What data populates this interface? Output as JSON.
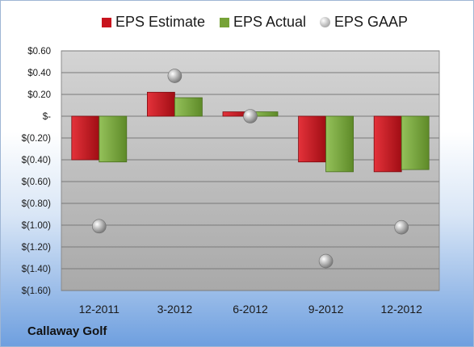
{
  "company_label": "Callaway Golf",
  "chart_data": {
    "type": "bar",
    "categories": [
      "12-2011",
      "3-2012",
      "6-2012",
      "9-2012",
      "12-2012"
    ],
    "series": [
      {
        "name": "EPS Estimate",
        "kind": "bar",
        "color": "#c8141e",
        "values": [
          -0.4,
          0.22,
          0.04,
          -0.42,
          -0.51
        ]
      },
      {
        "name": "EPS Actual",
        "kind": "bar",
        "color": "#76a237",
        "values": [
          -0.42,
          0.17,
          0.04,
          -0.51,
          -0.49
        ]
      },
      {
        "name": "EPS GAAP",
        "kind": "marker",
        "color": "#a8a8a8",
        "values": [
          -1.01,
          0.37,
          0.0,
          -1.33,
          -1.02
        ]
      }
    ],
    "y_ticks": [
      "$0.60",
      "$0.40",
      "$0.20",
      "$-",
      "$(0.20)",
      "$(0.40)",
      "$(0.60)",
      "$(0.80)",
      "$(1.00)",
      "$(1.20)",
      "$(1.40)",
      "$(1.60)"
    ],
    "ylim": [
      -1.6,
      0.6
    ],
    "grid": true,
    "legend_position": "top"
  }
}
